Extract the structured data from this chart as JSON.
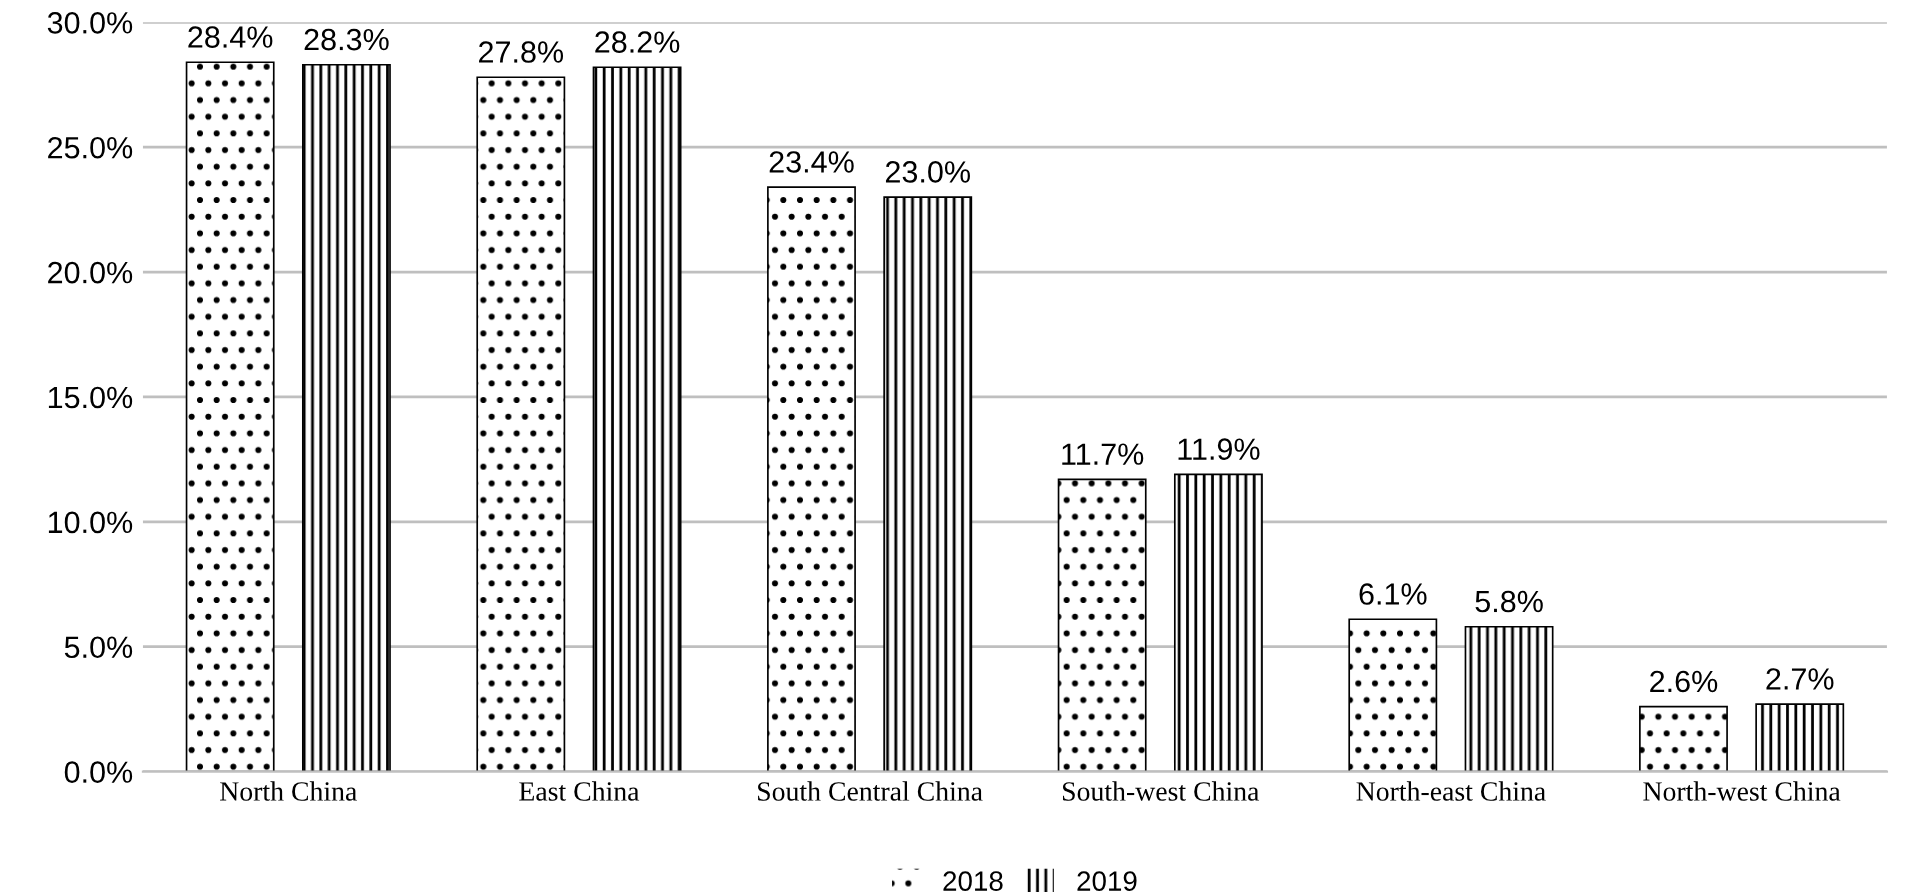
{
  "chart_data": {
    "type": "bar",
    "categories": [
      "North China",
      "East China",
      "South Central China",
      "South-west China",
      "North-east China",
      "North-west China"
    ],
    "series": [
      {
        "name": "2018",
        "color": "#000000",
        "values": [
          28.4,
          27.8,
          23.4,
          11.7,
          6.1,
          2.6
        ],
        "value_labels": [
          "28.4%",
          "27.8%",
          "23.4%",
          "11.7%",
          "6.1%",
          "2.6%"
        ]
      },
      {
        "name": "2019",
        "color": "#000000",
        "values": [
          28.3,
          28.2,
          23.0,
          11.9,
          5.8,
          2.7
        ],
        "value_labels": [
          "28.3%",
          "28.2%",
          "23.0%",
          "11.9%",
          "5.8%",
          "2.7%"
        ]
      }
    ],
    "ylim": [
      0,
      30
    ],
    "yticks": [
      {
        "value": 0,
        "label": "0.0%"
      },
      {
        "value": 5,
        "label": "5.0%"
      },
      {
        "value": 10,
        "label": "10.0%"
      },
      {
        "value": 15,
        "label": "15.0%"
      },
      {
        "value": 20,
        "label": "20.0%"
      },
      {
        "value": 25,
        "label": "25.0%"
      },
      {
        "value": 30,
        "label": "30.0%"
      }
    ],
    "grid": "y",
    "legend": "bottom"
  }
}
